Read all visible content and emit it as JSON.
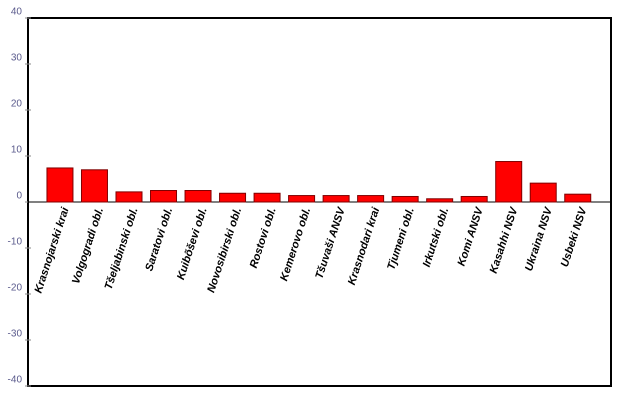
{
  "chart_data": {
    "type": "bar",
    "categories": [
      "Krasnojarski krai",
      "Volgogradi obl.",
      "Tšeljabinski obl.",
      "Saratovi obl.",
      "Kuibõševi obl.",
      "Novosibirski obl.",
      "Rostovi obl.",
      "Kemerovo obl.",
      "Tšuvaši ANSV",
      "Krasnodari krai",
      "Tjumeni obl.",
      "Irkutski obl.",
      "Komi ANSV",
      "Kasahhi NSV",
      "Ukraina NSV",
      "Usbeki NSV"
    ],
    "values": [
      7.4,
      7.0,
      2.2,
      2.5,
      2.5,
      1.9,
      1.9,
      1.4,
      1.4,
      1.4,
      1.2,
      0.7,
      1.2,
      8.8,
      4.1,
      1.7
    ],
    "color": "#ff0000",
    "ylim": [
      -40,
      40
    ],
    "yticks": [
      -40,
      -30,
      -20,
      -10,
      0,
      10,
      20,
      30,
      40
    ]
  }
}
